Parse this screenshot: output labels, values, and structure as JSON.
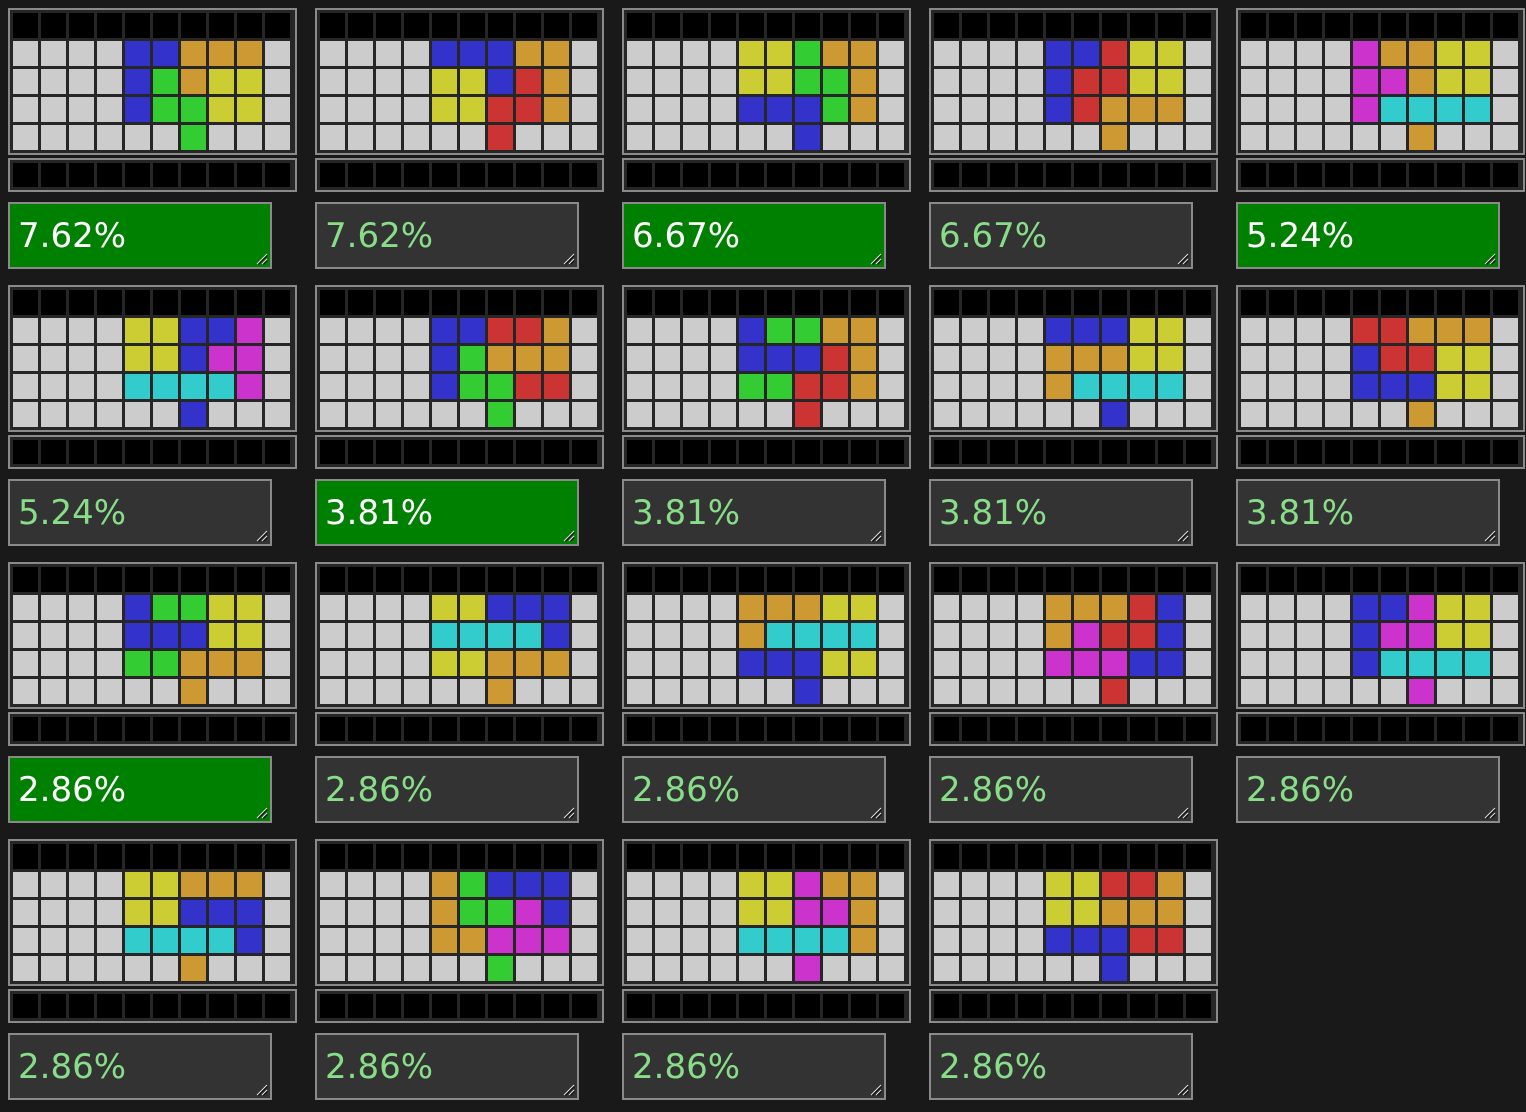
{
  "palette": {
    "page_background": "#191919",
    "empty_cell": "#cccccc",
    "black_cell": "#000000",
    "grid_line": "#262626",
    "frame_border": "#8a8a8a",
    "label_background": "#333333",
    "label_text": "#88dd88",
    "selected_label_background": "#008000",
    "selected_label_text": "#ffffff",
    "pieces": {
      "B": "#3333cc",
      "G": "#33cc33",
      "Y": "#cccc33",
      "O": "#cc9933",
      "R": "#cc3333",
      "M": "#cc33cc",
      "C": "#33cccc"
    }
  },
  "board_format": {
    "columns": 10,
    "play_rows": 4,
    "top_black_row": true,
    "bottom_black_strip": true,
    "cell_legend": ". = empty, B = blue, G = green, Y = yellow, O = orange, R = red, M = magenta, C = cyan"
  },
  "boards": [
    {
      "label": "7.62%",
      "selected": true,
      "rows": [
        "....BBOOO.",
        "....BGOYY.",
        "....BGGYY.",
        "......G..."
      ]
    },
    {
      "label": "7.62%",
      "selected": false,
      "rows": [
        "....BBBOO.",
        "....YYBRO.",
        "....YYRRO.",
        "......R..."
      ]
    },
    {
      "label": "6.67%",
      "selected": true,
      "rows": [
        "....YYGOO.",
        "....YYGGO.",
        "....BBBGO.",
        "......B..."
      ]
    },
    {
      "label": "6.67%",
      "selected": false,
      "rows": [
        "....BBRYY.",
        "....BRRYY.",
        "....BROOO.",
        "......O..."
      ]
    },
    {
      "label": "5.24%",
      "selected": true,
      "rows": [
        "....MOOYY.",
        "....MMOYY.",
        "....MCCCC.",
        "......O..."
      ]
    },
    {
      "label": "5.24%",
      "selected": false,
      "rows": [
        "....YYBBM.",
        "....YYBMM.",
        "....CCCCM.",
        "......B..."
      ]
    },
    {
      "label": "3.81%",
      "selected": true,
      "rows": [
        "....BBRRO.",
        "....BGOOO.",
        "....BGGRR.",
        "......G..."
      ]
    },
    {
      "label": "3.81%",
      "selected": false,
      "rows": [
        "....BGGOO.",
        "....BBBRO.",
        "....GGRRO.",
        "......R..."
      ]
    },
    {
      "label": "3.81%",
      "selected": false,
      "rows": [
        "....BBBYY.",
        "....OOOYY.",
        "....OCCCC.",
        "......B..."
      ]
    },
    {
      "label": "3.81%",
      "selected": false,
      "rows": [
        "....RROOO.",
        "....BRRYY.",
        "....BBBYY.",
        "......O..."
      ]
    },
    {
      "label": "2.86%",
      "selected": true,
      "rows": [
        "....BGGYY.",
        "....BBBYY.",
        "....GGOOO.",
        "......O..."
      ]
    },
    {
      "label": "2.86%",
      "selected": false,
      "rows": [
        "....YYBBB.",
        "....CCCCB.",
        "....YYOOO.",
        "......O..."
      ]
    },
    {
      "label": "2.86%",
      "selected": false,
      "rows": [
        "....OOOYY.",
        "....OCCCC.",
        "....BBBYY.",
        "......B..."
      ]
    },
    {
      "label": "2.86%",
      "selected": false,
      "rows": [
        "....OOORB.",
        "....OMRRB.",
        "....MMMBB.",
        "......R..."
      ]
    },
    {
      "label": "2.86%",
      "selected": false,
      "rows": [
        "....BBMYY.",
        "....BMMYY.",
        "....BCCCC.",
        "......M..."
      ]
    },
    {
      "label": "2.86%",
      "selected": false,
      "rows": [
        "....YYOOO.",
        "....YYBBB.",
        "....CCCCB.",
        "......O..."
      ]
    },
    {
      "label": "2.86%",
      "selected": false,
      "rows": [
        "....OGBBB.",
        "....OGGMB.",
        "....OOMMM.",
        "......G..."
      ]
    },
    {
      "label": "2.86%",
      "selected": false,
      "rows": [
        "....YYMOO.",
        "....YYMMO.",
        "....CCCCO.",
        "......M..."
      ]
    },
    {
      "label": "2.86%",
      "selected": false,
      "rows": [
        "....YYRRO.",
        "....YYOOO.",
        "....BBBRR.",
        "......B..."
      ]
    }
  ]
}
